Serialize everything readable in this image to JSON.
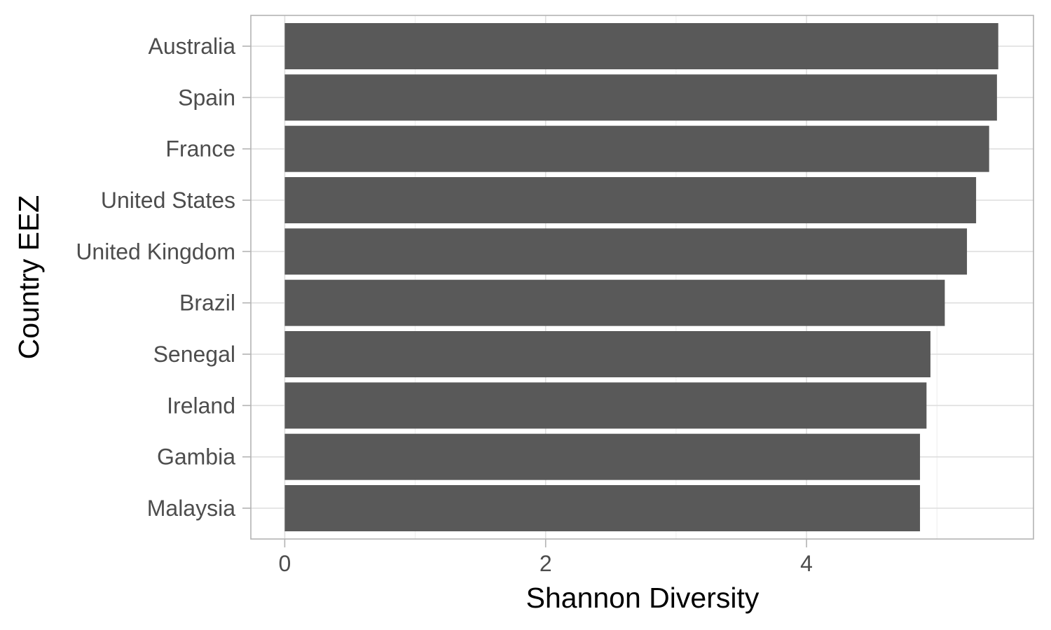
{
  "chart_data": {
    "type": "bar",
    "orientation": "horizontal",
    "title": "",
    "xlabel": "Shannon Diversity",
    "ylabel": "Country EEZ",
    "categories": [
      "Australia",
      "Spain",
      "France",
      "United States",
      "United Kingdom",
      "Brazil",
      "Senegal",
      "Ireland",
      "Gambia",
      "Malaysia"
    ],
    "values": [
      5.47,
      5.46,
      5.4,
      5.3,
      5.23,
      5.06,
      4.95,
      4.92,
      4.87,
      4.87
    ],
    "xlim": [
      -0.26,
      5.74
    ],
    "x_ticks": [
      0,
      2,
      4
    ],
    "x_tick_labels": [
      "0",
      "2",
      "4"
    ],
    "x_minor_ticks": [
      1,
      3,
      5
    ],
    "grid": true,
    "legend": "none",
    "colors": {
      "bar": "#595959",
      "grid_major": "#dedede",
      "grid_minor": "#ededed",
      "panel_border": "#b3b3b3",
      "axis_ticks": "#b3b3b3"
    }
  }
}
